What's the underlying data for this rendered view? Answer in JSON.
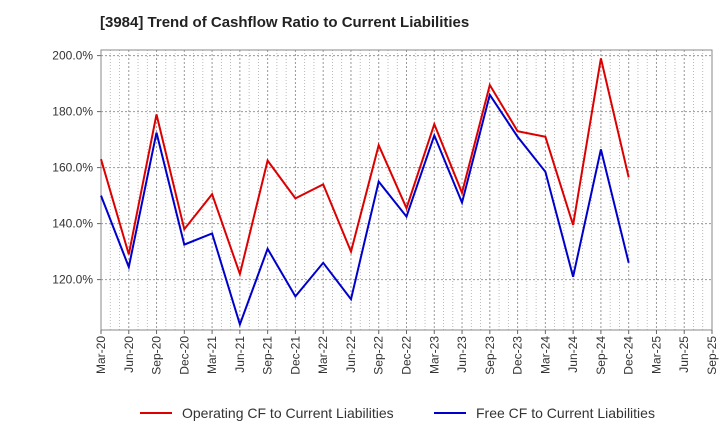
{
  "chart_data": {
    "type": "line",
    "title": "[3984]  Trend of Cashflow Ratio to Current Liabilities",
    "xlabel": "",
    "ylabel": "",
    "categories": [
      "Mar-20",
      "Jun-20",
      "Sep-20",
      "Dec-20",
      "Mar-21",
      "Jun-21",
      "Sep-21",
      "Dec-21",
      "Mar-22",
      "Jun-22",
      "Sep-22",
      "Dec-22",
      "Mar-23",
      "Jun-23",
      "Sep-23",
      "Dec-23",
      "Mar-24",
      "Jun-24",
      "Sep-24",
      "Dec-24",
      "Mar-25",
      "Jun-25",
      "Sep-25"
    ],
    "ylim": [
      102,
      202
    ],
    "yticks": [
      120,
      140,
      160,
      180,
      200
    ],
    "ytick_labels": [
      "120.0%",
      "140.0%",
      "160.0%",
      "180.0%",
      "200.0%"
    ],
    "grid": true,
    "legend_position": "bottom",
    "series": [
      {
        "name": "Operating CF to Current Liabilities",
        "color": "#dd0000",
        "values": [
          163.0,
          129.0,
          179.0,
          138.0,
          150.5,
          122.0,
          162.5,
          149.0,
          154.0,
          130.0,
          168.0,
          145.5,
          175.5,
          151.0,
          189.5,
          173.0,
          171.0,
          139.5,
          199.0,
          156.5,
          null,
          null,
          null
        ]
      },
      {
        "name": "Free CF to Current Liabilities",
        "color": "#0000cc",
        "values": [
          150.0,
          124.5,
          172.5,
          132.5,
          136.5,
          104.0,
          131.0,
          114.0,
          126.0,
          113.0,
          155.0,
          142.5,
          171.5,
          147.5,
          186.0,
          171.0,
          158.5,
          121.0,
          166.5,
          126.0,
          null,
          null,
          null
        ]
      }
    ]
  }
}
